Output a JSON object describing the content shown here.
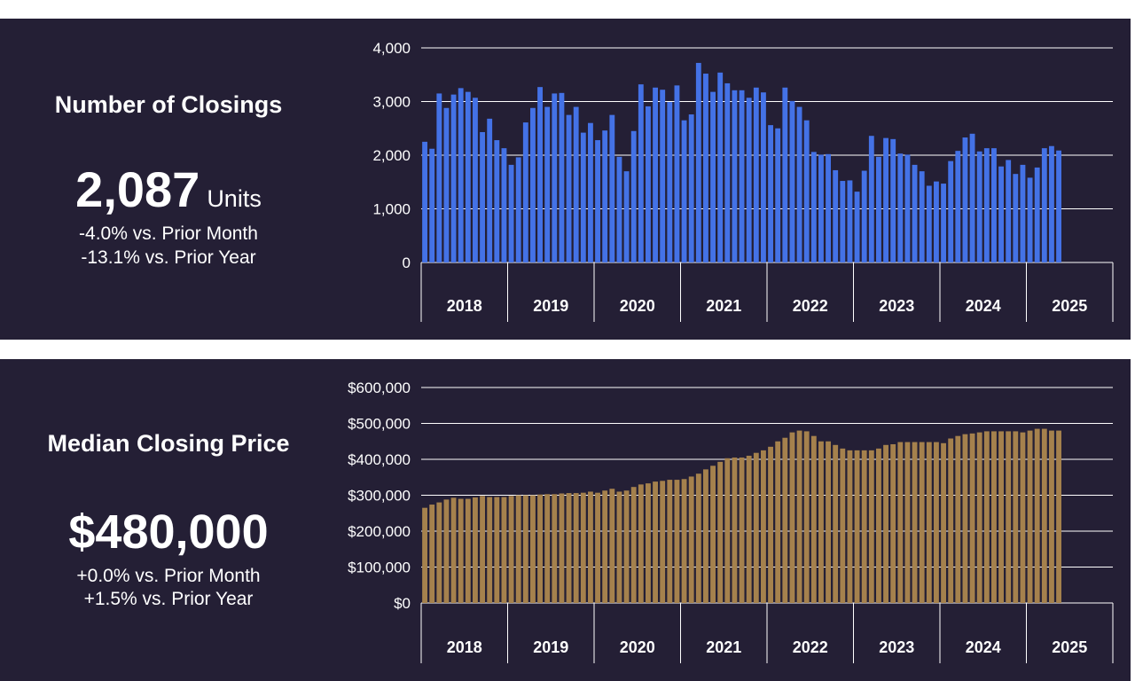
{
  "colors": {
    "panel_bg": "#241f35",
    "closings_bar": "#4472e6",
    "price_bar": "#a5814d",
    "grid": "#ffffff",
    "text": "#ffffff"
  },
  "closings": {
    "title": "Number of Closings",
    "value": "2,087",
    "unit": "Units",
    "change_month": "-4.0% vs. Prior Month",
    "change_year": "-13.1% vs. Prior Year"
  },
  "price": {
    "title": "Median Closing Price",
    "value": "$480,000",
    "change_month": "+0.0% vs. Prior Month",
    "change_year": "+1.5% vs. Prior Year"
  },
  "chart_data": [
    {
      "type": "bar",
      "ylim": [
        0,
        4000
      ],
      "yticks": [
        0,
        1000,
        2000,
        3000,
        4000
      ],
      "ytick_labels": [
        "0",
        "1,000",
        "2,000",
        "3,000",
        "4,000"
      ],
      "xgroups": [
        "2018",
        "2019",
        "2020",
        "2021",
        "2022",
        "2023",
        "2024",
        "2025"
      ],
      "grid": true,
      "values": [
        2250,
        2120,
        3150,
        2880,
        3130,
        3250,
        3180,
        3070,
        2430,
        2680,
        2280,
        2130,
        1820,
        1960,
        2610,
        2880,
        3270,
        2900,
        3150,
        3160,
        2750,
        2900,
        2420,
        2600,
        2280,
        2460,
        2750,
        1970,
        1700,
        2450,
        3320,
        2910,
        3260,
        3220,
        2990,
        3300,
        2650,
        2760,
        3720,
        3520,
        3180,
        3540,
        3340,
        3210,
        3210,
        3070,
        3260,
        3170,
        2560,
        2500,
        3260,
        3010,
        2900,
        2650,
        2060,
        2010,
        2020,
        1720,
        1520,
        1530,
        1320,
        1710,
        2360,
        1970,
        2320,
        2300,
        2030,
        2010,
        1820,
        1700,
        1430,
        1510,
        1470,
        1890,
        2080,
        2330,
        2400,
        2070,
        2130,
        2130,
        1790,
        1910,
        1650,
        1820,
        1580,
        1770,
        2130,
        2170,
        2087
      ]
    },
    {
      "type": "bar",
      "ylim": [
        0,
        600000
      ],
      "yticks": [
        0,
        100000,
        200000,
        300000,
        400000,
        500000,
        600000
      ],
      "ytick_labels": [
        "$0",
        "$100,000",
        "$200,000",
        "$300,000",
        "$400,000",
        "$500,000",
        "$600,000"
      ],
      "xgroups": [
        "2018",
        "2019",
        "2020",
        "2021",
        "2022",
        "2023",
        "2024",
        "2025"
      ],
      "grid": true,
      "values": [
        265000,
        274000,
        280000,
        288000,
        293000,
        290000,
        290000,
        294000,
        298000,
        295000,
        295000,
        295000,
        298000,
        300000,
        300000,
        300000,
        302000,
        303000,
        303000,
        305000,
        306000,
        306000,
        307000,
        310000,
        307000,
        313000,
        318000,
        310000,
        313000,
        323000,
        330000,
        333000,
        338000,
        340000,
        343000,
        343000,
        345000,
        352000,
        360000,
        372000,
        382000,
        393000,
        403000,
        405000,
        405000,
        410000,
        418000,
        425000,
        435000,
        450000,
        460000,
        475000,
        480000,
        478000,
        465000,
        450000,
        450000,
        440000,
        430000,
        425000,
        425000,
        425000,
        425000,
        430000,
        440000,
        442000,
        448000,
        448000,
        448000,
        448000,
        448000,
        448000,
        445000,
        458000,
        465000,
        470000,
        472000,
        475000,
        478000,
        478000,
        478000,
        478000,
        478000,
        475000,
        480000,
        485000,
        485000,
        480000,
        480000
      ]
    }
  ]
}
